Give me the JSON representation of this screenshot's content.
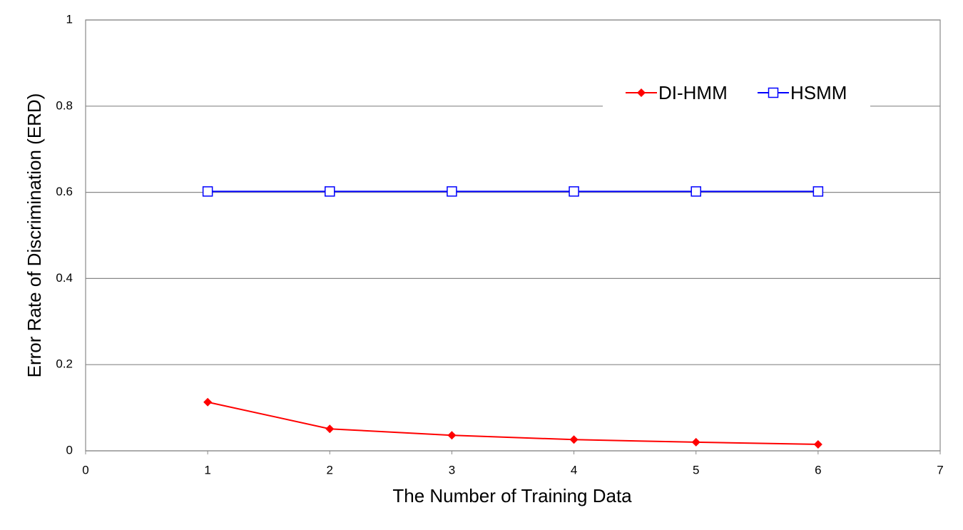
{
  "chart_data": {
    "type": "line",
    "x_label": "The Number of Training Data",
    "y_label": "Error Rate of Discrimination (ERD)",
    "x": [
      1,
      2,
      3,
      4,
      5,
      6
    ],
    "series": [
      {
        "name": "DI-HMM",
        "color": "#ff0000",
        "marker": "diamond",
        "values": [
          0.113,
          0.051,
          0.036,
          0.026,
          0.02,
          0.015
        ]
      },
      {
        "name": "HSMM",
        "color": "#0000ff",
        "marker": "square",
        "values": [
          0.602,
          0.602,
          0.602,
          0.602,
          0.602,
          0.602
        ]
      }
    ],
    "xlim": [
      0,
      7
    ],
    "xticks": [
      0,
      1,
      2,
      3,
      4,
      5,
      6,
      7
    ],
    "ylim": [
      0,
      1
    ],
    "yticks": [
      0,
      0.2,
      0.4,
      0.6,
      0.8,
      1
    ],
    "grid": true,
    "legend": "upper right"
  }
}
